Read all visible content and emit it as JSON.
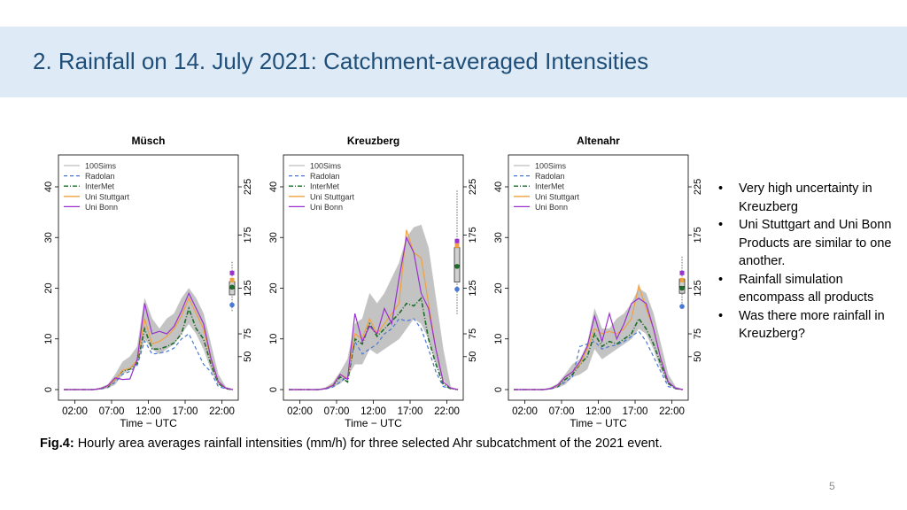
{
  "slide": {
    "title": "2. Rainfall on 14. July 2021: Catchment-averaged Intensities",
    "caption_label": "Fig.4:",
    "caption_text": " Hourly area averages rainfall intensities (mm/h) for three selected Ahr subcatchment of the 2021 event.",
    "page_number": "5",
    "bullets": [
      "Very high uncertainty in Kreuzberg",
      "Uni Stuttgart and Uni Bonn Products are similar to one another.",
      "Rainfall simulation encompass all products",
      "Was there more rainfall in Kreuzberg?"
    ]
  },
  "colors": {
    "header_bg": "#deebf6",
    "title": "#1f4e79",
    "sims": "#bdbdbd",
    "radolan": "#4a78d6",
    "intermet": "#1e6b2a",
    "uni_stuttgart": "#f0a040",
    "uni_bonn": "#9932cc"
  },
  "chart_data": [
    {
      "type": "line",
      "title": "Müsch",
      "xlabel": "Time − UTC",
      "ylabel": "",
      "x_ticks": [
        "02:00",
        "07:00",
        "12:00",
        "17:00",
        "22:00"
      ],
      "x_hours": [
        0,
        1,
        2,
        3,
        4,
        5,
        6,
        7,
        8,
        9,
        10,
        11,
        12,
        13,
        14,
        15,
        16,
        17,
        18,
        19,
        20,
        21,
        22,
        23
      ],
      "ylim": [
        0,
        40
      ],
      "y_ticks": [
        0,
        10,
        20,
        30,
        40
      ],
      "y2_ticks": [
        "50",
        "75",
        "125",
        "175",
        "225"
      ],
      "legend": [
        "100Sims",
        "Radolan",
        "InterMet",
        "Uni Stuttgart",
        "Uni Bonn"
      ],
      "legend_position": "top-left",
      "sims_band": {
        "low": [
          0,
          0,
          0,
          0,
          0,
          0.1,
          0.3,
          1,
          3,
          4,
          5,
          10,
          8,
          7,
          8,
          9,
          11,
          13,
          11,
          8,
          4,
          1,
          0.2,
          0
        ],
        "high": [
          0,
          0,
          0,
          0,
          0,
          0.4,
          1,
          3,
          5.5,
          6.5,
          8.5,
          18,
          14,
          12,
          14,
          15,
          18,
          20,
          18,
          15,
          9,
          3,
          0.6,
          0
        ]
      },
      "series": [
        {
          "name": "Radolan",
          "values": [
            0,
            0,
            0,
            0,
            0,
            0.1,
            0.4,
            1.5,
            3,
            3.6,
            4.8,
            9.6,
            7,
            7.2,
            7.5,
            8.2,
            10,
            11,
            8,
            5,
            3.5,
            0.6,
            0.2,
            0
          ]
        },
        {
          "name": "InterMet",
          "values": [
            0,
            0,
            0,
            0,
            0,
            0.2,
            0.6,
            2,
            3.7,
            4,
            5.2,
            12,
            8,
            8,
            8.5,
            9.2,
            11,
            16,
            12,
            10,
            5,
            1.2,
            0.2,
            0
          ]
        },
        {
          "name": "Uni Stuttgart",
          "values": [
            0,
            0,
            0,
            0,
            0,
            0.2,
            0.7,
            2,
            3.8,
            4.2,
            5.8,
            14,
            9,
            9.5,
            10.5,
            12,
            14.5,
            18,
            15,
            12,
            6,
            1.5,
            0.3,
            0
          ]
        },
        {
          "name": "Uni Bonn",
          "values": [
            0,
            0,
            0,
            0,
            0,
            0.2,
            0.8,
            2.3,
            2,
            2.1,
            6,
            17,
            11,
            11.5,
            11,
            12.5,
            15.5,
            19,
            16,
            13,
            6.2,
            1.6,
            0.3,
            0
          ]
        }
      ],
      "boxplot": {
        "whisker_low": 15.5,
        "q1": 18.7,
        "median": 20,
        "q3": 21.3,
        "whisker_high": 25.3,
        "markers": [
          {
            "name": "Radolan",
            "value": 16.7
          },
          {
            "name": "InterMet",
            "value": 20.2
          },
          {
            "name": "Uni Stuttgart",
            "value": 21.6
          },
          {
            "name": "Uni Bonn",
            "value": 23.0
          }
        ]
      }
    },
    {
      "type": "line",
      "title": "Kreuzberg",
      "xlabel": "Time − UTC",
      "ylabel": "",
      "x_ticks": [
        "02:00",
        "07:00",
        "12:00",
        "17:00",
        "22:00"
      ],
      "x_hours": [
        0,
        1,
        2,
        3,
        4,
        5,
        6,
        7,
        8,
        9,
        10,
        11,
        12,
        13,
        14,
        15,
        16,
        17,
        18,
        19,
        20,
        21,
        22,
        23
      ],
      "ylim": [
        0,
        40
      ],
      "y_ticks": [
        0,
        10,
        20,
        30,
        40
      ],
      "y2_ticks": [
        "50",
        "75",
        "125",
        "175",
        "225"
      ],
      "legend": [
        "100Sims",
        "Radolan",
        "InterMet",
        "Uni Stuttgart",
        "Uni Bonn"
      ],
      "legend_position": "top-left",
      "sims_band": {
        "low": [
          0,
          0,
          0,
          0,
          0,
          0.1,
          0.4,
          1.2,
          2.5,
          5,
          5,
          8,
          7,
          8,
          9,
          10,
          12,
          14,
          13,
          10,
          5,
          2,
          0.2,
          0
        ],
        "high": [
          0,
          0,
          0,
          0,
          0,
          0.4,
          1.4,
          3.5,
          6,
          13,
          14,
          19,
          17,
          19,
          22,
          25,
          30,
          32,
          32.5,
          28,
          18,
          8,
          0.6,
          0
        ]
      },
      "series": [
        {
          "name": "Radolan",
          "values": [
            0,
            0,
            0,
            0,
            0,
            0.1,
            0.5,
            1.5,
            2.5,
            9.5,
            7,
            8,
            9,
            11,
            12,
            14,
            13.5,
            14,
            12,
            8,
            3.5,
            0.6,
            0.2,
            0
          ]
        },
        {
          "name": "InterMet",
          "values": [
            0,
            0,
            0,
            0,
            0,
            0.2,
            0.8,
            2.5,
            1.5,
            10,
            9,
            13,
            10.5,
            12,
            13.5,
            15,
            17,
            16.5,
            18,
            10,
            5,
            1,
            0.2,
            0
          ]
        },
        {
          "name": "Uni Stuttgart",
          "values": [
            0,
            0,
            0,
            0,
            0,
            0.2,
            0.9,
            3,
            2.2,
            11,
            10,
            14,
            11,
            13,
            15,
            17,
            31.5,
            27,
            26,
            17,
            8,
            1.5,
            0.3,
            0
          ]
        },
        {
          "name": "Uni Bonn",
          "values": [
            0,
            0,
            0,
            0,
            0,
            0.2,
            0.8,
            3,
            2,
            15,
            9.5,
            12.5,
            11,
            16,
            13,
            22,
            30,
            27,
            19,
            16,
            8,
            1.5,
            0.3,
            0
          ]
        }
      ],
      "boxplot": {
        "whisker_low": 14.9,
        "q1": 21.2,
        "median": 24.5,
        "q3": 28.0,
        "whisker_high": 39.5,
        "markers": [
          {
            "name": "Radolan",
            "value": 19.8
          },
          {
            "name": "InterMet",
            "value": 24.3
          },
          {
            "name": "Uni Stuttgart",
            "value": 28.4
          },
          {
            "name": "Uni Bonn",
            "value": 29.3
          }
        ]
      }
    },
    {
      "type": "line",
      "title": "Altenahr",
      "xlabel": "Time − UTC",
      "ylabel": "",
      "x_ticks": [
        "02:00",
        "07:00",
        "12:00",
        "17:00",
        "22:00"
      ],
      "x_hours": [
        0,
        1,
        2,
        3,
        4,
        5,
        6,
        7,
        8,
        9,
        10,
        11,
        12,
        13,
        14,
        15,
        16,
        17,
        18,
        19,
        20,
        21,
        22,
        23
      ],
      "ylim": [
        0,
        40
      ],
      "y_ticks": [
        0,
        10,
        20,
        30,
        40
      ],
      "y2_ticks": [
        "50",
        "75",
        "125",
        "175",
        "225"
      ],
      "legend": [
        "100Sims",
        "Radolan",
        "InterMet",
        "Uni Stuttgart",
        "Uni Bonn"
      ],
      "legend_position": "top-left",
      "sims_band": {
        "low": [
          0,
          0,
          0,
          0,
          0,
          0.1,
          0.4,
          1,
          2.5,
          3,
          4,
          8,
          6,
          7,
          8,
          9,
          10,
          12,
          11,
          8,
          4,
          1,
          0.2,
          0
        ],
        "high": [
          0,
          0,
          0,
          0,
          0,
          0.4,
          1.2,
          3,
          5,
          6,
          9,
          16,
          12,
          12,
          14,
          15,
          17,
          20,
          19,
          15,
          9,
          3,
          0.6,
          0
        ]
      },
      "series": [
        {
          "name": "Radolan",
          "values": [
            0,
            0,
            0,
            0,
            0,
            0.1,
            0.5,
            1.5,
            2.5,
            8.5,
            9,
            9.5,
            8,
            8.5,
            8.8,
            9.5,
            10.5,
            11.5,
            9.5,
            6.5,
            3.5,
            0.6,
            0.2,
            0
          ]
        },
        {
          "name": "InterMet",
          "values": [
            0,
            0,
            0,
            0,
            0,
            0.2,
            0.7,
            2,
            3,
            5,
            6.5,
            11,
            8.5,
            9.5,
            9,
            10,
            11,
            14,
            12,
            9,
            5,
            1.2,
            0.2,
            0
          ]
        },
        {
          "name": "Uni Stuttgart",
          "values": [
            0,
            0,
            0,
            0,
            0,
            0.2,
            0.8,
            2.5,
            3.5,
            5,
            8,
            12,
            11,
            11.5,
            11,
            12,
            14,
            20.5,
            16,
            12,
            6,
            1.5,
            0.3,
            0
          ]
        },
        {
          "name": "Uni Bonn",
          "values": [
            0,
            0,
            0,
            0,
            0,
            0.2,
            0.9,
            2.5,
            3.5,
            5.5,
            8.5,
            14.5,
            9.5,
            15,
            10,
            13,
            17,
            18,
            17,
            12,
            6,
            1.5,
            0.3,
            0
          ]
        }
      ],
      "boxplot": {
        "whisker_low": 16.0,
        "q1": 19.0,
        "median": 20.3,
        "q3": 21.8,
        "whisker_high": 26.3,
        "markers": [
          {
            "name": "Radolan",
            "value": 16.4
          },
          {
            "name": "InterMet",
            "value": 20.0
          },
          {
            "name": "Uni Stuttgart",
            "value": 21.6
          },
          {
            "name": "Uni Bonn",
            "value": 23.0
          }
        ]
      }
    }
  ]
}
